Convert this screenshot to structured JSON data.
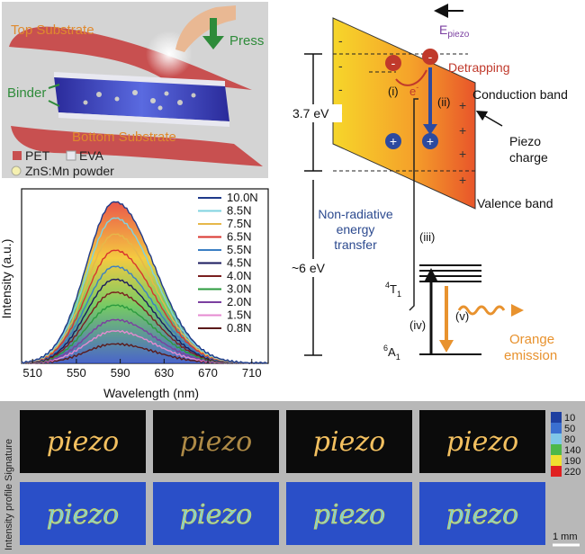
{
  "panel_a": {
    "top_substrate": "Top Substrate",
    "press": "Press",
    "binder": "Binder",
    "bottom_substrate": "Bottom Substrate",
    "legend": {
      "pet": "PET",
      "eva": "EVA",
      "znsmn": "ZnS:Mn powder"
    },
    "colors": {
      "substrate": "#c8504f",
      "bg": "#d6d6d6",
      "press_arrow": "#2e8b3a",
      "binder_arrow": "#2e8b3a",
      "label_orange": "#e08a2e"
    }
  },
  "panel_b": {
    "chart_data": {
      "type": "line",
      "xlabel": "Wavelength (nm)",
      "ylabel": "Intensity (a.u.)",
      "x_ticks": [
        510,
        550,
        590,
        630,
        670,
        710
      ],
      "xlim": [
        500,
        725
      ],
      "grid": false,
      "legend_position": "top-right",
      "peak_x": 585,
      "series": [
        {
          "name": "10.0N",
          "color": "#1f3a8a",
          "peak": 1.0
        },
        {
          "name": "8.5N",
          "color": "#7fd3e0",
          "peak": 0.9
        },
        {
          "name": "7.5N",
          "color": "#e6b84a",
          "peak": 0.8
        },
        {
          "name": "6.5N",
          "color": "#d9352e",
          "peak": 0.7
        },
        {
          "name": "5.5N",
          "color": "#3b7fc4",
          "peak": 0.6
        },
        {
          "name": "4.5N",
          "color": "#1a1a5e",
          "peak": 0.52
        },
        {
          "name": "4.0N",
          "color": "#7a1f1f",
          "peak": 0.44
        },
        {
          "name": "3.0N",
          "color": "#2b9b3e",
          "peak": 0.36
        },
        {
          "name": "2.0N",
          "color": "#7b3fa0",
          "peak": 0.27
        },
        {
          "name": "1.5N",
          "color": "#e58ad0",
          "peak": 0.2
        },
        {
          "name": "0.8N",
          "color": "#5b1a1a",
          "peak": 0.12
        }
      ]
    }
  },
  "panel_c": {
    "e_piezo": "E",
    "e_piezo_sub": "piezo",
    "detrapping": "Detrapping",
    "conduction_band": "Conduction band",
    "valence_band": "Valence band",
    "piezo_charge_1": "Piezo",
    "piezo_charge_2": "charge",
    "gap_label": "3.7 eV",
    "ev6_label": "~6 eV",
    "non_rad_1": "Non-radiative",
    "non_rad_2": "energy",
    "non_rad_3": "transfer",
    "step_i": "(i)",
    "step_ii": "(ii)",
    "step_iii": "(iii)",
    "step_iv": "(iv)",
    "step_v": "(v)",
    "electron": "e",
    "electron_sup": "-",
    "t1_sup": "4",
    "t1": "T",
    "t1_sub": "1",
    "a1_sup": "6",
    "a1": "A",
    "a1_sub": "1",
    "orange_1": "Orange",
    "orange_2": "emission",
    "plus": "+",
    "minus": "-",
    "colors": {
      "detrapping": "#c0392b",
      "blue_text": "#2c4a8f",
      "orange": "#e8922e",
      "epiezo": "#7b3fa0"
    }
  },
  "panel_d": {
    "side_label": "Intensity profile  Signature",
    "word": "piezo",
    "scale_bar": "1 mm",
    "colorbar": [
      {
        "value": "10",
        "color": "#1e3fa0"
      },
      {
        "value": "50",
        "color": "#3a6fd0"
      },
      {
        "value": "80",
        "color": "#7fc7e8"
      },
      {
        "value": "140",
        "color": "#4db84a"
      },
      {
        "value": "190",
        "color": "#f0e030"
      },
      {
        "value": "220",
        "color": "#e02020"
      }
    ]
  }
}
